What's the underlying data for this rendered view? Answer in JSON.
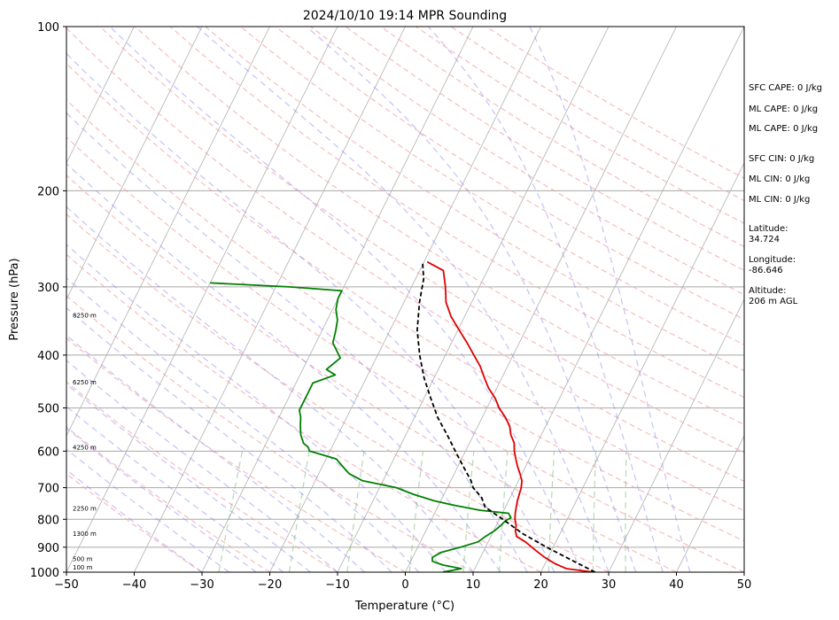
{
  "chart_data": {
    "type": "line",
    "title": "2024/10/10 19:14 MPR Sounding",
    "xlabel": "Temperature (°C)",
    "ylabel": "Pressure (hPa)",
    "xlim": [
      -50,
      50
    ],
    "ylim": [
      1000,
      100
    ],
    "y_scale": "log",
    "grid": true,
    "x_ticks": [
      -50,
      -40,
      -30,
      -20,
      -10,
      0,
      10,
      20,
      30,
      40,
      50
    ],
    "y_ticks": [
      100,
      200,
      300,
      400,
      500,
      600,
      700,
      800,
      900,
      1000
    ],
    "series": [
      {
        "color": "#e00000",
        "points": [
          [
            1000,
            27.8
          ],
          [
            985,
            23.5
          ],
          [
            965,
            21.5
          ],
          [
            940,
            19.5
          ],
          [
            910,
            17.5
          ],
          [
            880,
            15.5
          ],
          [
            860,
            13.8
          ],
          [
            840,
            13.2
          ],
          [
            820,
            12.9
          ],
          [
            800,
            12.3
          ],
          [
            780,
            11.9
          ],
          [
            760,
            11.6
          ],
          [
            740,
            11.3
          ],
          [
            720,
            11.1
          ],
          [
            700,
            10.9
          ],
          [
            680,
            10.5
          ],
          [
            660,
            9.7
          ],
          [
            640,
            8.8
          ],
          [
            620,
            8.0
          ],
          [
            600,
            7.2
          ],
          [
            580,
            6.6
          ],
          [
            560,
            5.5
          ],
          [
            540,
            4.7
          ],
          [
            520,
            3.4
          ],
          [
            500,
            1.8
          ],
          [
            480,
            0.5
          ],
          [
            460,
            -1.2
          ],
          [
            440,
            -2.6
          ],
          [
            420,
            -4.0
          ],
          [
            400,
            -5.8
          ],
          [
            380,
            -7.7
          ],
          [
            360,
            -9.8
          ],
          [
            340,
            -12.0
          ],
          [
            320,
            -13.8
          ],
          [
            300,
            -15.0
          ],
          [
            280,
            -16.5
          ],
          [
            270,
            -19.5
          ]
        ]
      },
      {
        "color": "#008000",
        "points": [
          [
            1000,
            5.5
          ],
          [
            985,
            8.0
          ],
          [
            970,
            5.0
          ],
          [
            955,
            3.2
          ],
          [
            940,
            2.9
          ],
          [
            920,
            3.8
          ],
          [
            900,
            6.3
          ],
          [
            880,
            8.5
          ],
          [
            860,
            9.2
          ],
          [
            840,
            10.1
          ],
          [
            820,
            10.7
          ],
          [
            805,
            11.0
          ],
          [
            795,
            11.6
          ],
          [
            780,
            10.9
          ],
          [
            770,
            6.5
          ],
          [
            755,
            2.5
          ],
          [
            740,
            -1.0
          ],
          [
            720,
            -4.5
          ],
          [
            700,
            -7.5
          ],
          [
            680,
            -13.0
          ],
          [
            660,
            -15.5
          ],
          [
            640,
            -17.0
          ],
          [
            620,
            -18.5
          ],
          [
            600,
            -23.0
          ],
          [
            590,
            -23.5
          ],
          [
            580,
            -24.5
          ],
          [
            560,
            -25.5
          ],
          [
            540,
            -26.2
          ],
          [
            520,
            -26.8
          ],
          [
            505,
            -27.5
          ],
          [
            490,
            -27.5
          ],
          [
            470,
            -27.5
          ],
          [
            450,
            -27.5
          ],
          [
            435,
            -24.8
          ],
          [
            425,
            -26.5
          ],
          [
            405,
            -25.3
          ],
          [
            380,
            -27.5
          ],
          [
            360,
            -28.0
          ],
          [
            345,
            -28.5
          ],
          [
            330,
            -29.5
          ],
          [
            315,
            -30.0
          ],
          [
            305,
            -30.0
          ],
          [
            300,
            -38.0
          ],
          [
            295,
            -50.0
          ]
        ]
      },
      {
        "color": "#000000",
        "style": "dashed",
        "points": [
          [
            1000,
            28.0
          ],
          [
            960,
            24.5
          ],
          [
            900,
            19.0
          ],
          [
            850,
            14.5
          ],
          [
            800,
            10.5
          ],
          [
            760,
            7.0
          ],
          [
            730,
            5.8
          ],
          [
            700,
            3.8
          ],
          [
            680,
            3.0
          ],
          [
            640,
            0.8
          ],
          [
            600,
            -1.5
          ],
          [
            560,
            -3.9
          ],
          [
            520,
            -6.6
          ],
          [
            480,
            -9.0
          ],
          [
            440,
            -11.5
          ],
          [
            400,
            -13.8
          ],
          [
            360,
            -16.0
          ],
          [
            320,
            -17.7
          ],
          [
            290,
            -18.8
          ],
          [
            270,
            -20.2
          ]
        ]
      }
    ],
    "height_labels": [
      {
        "pressure": 1000,
        "text": "100 m"
      },
      {
        "pressure": 965,
        "text": "500 m"
      },
      {
        "pressure": 868,
        "text": "1300 m"
      },
      {
        "pressure": 780,
        "text": "2250 m"
      },
      {
        "pressure": 603,
        "text": "4250 m"
      },
      {
        "pressure": 458,
        "text": "6250 m"
      },
      {
        "pressure": 345,
        "text": "8250 m"
      }
    ],
    "annotations": [
      "SFC CAPE: 0 J/kg",
      "ML CAPE: 0 J/kg",
      "ML CAPE: 0 J/kg",
      "SFC CIN: 0 J/kg",
      "ML CIN: 0 J/kg",
      "ML CIN: 0 J/kg",
      "Latitude:",
      "34.724",
      "Longitude:",
      "-86.646",
      "Altitude:",
      "206 m AGL"
    ]
  }
}
